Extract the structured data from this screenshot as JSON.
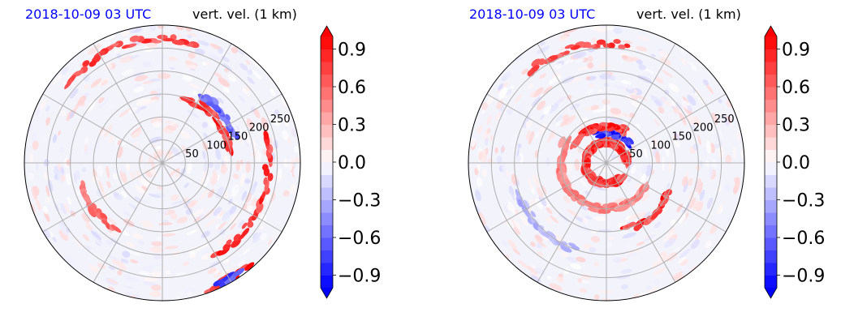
{
  "chart_data": [
    {
      "type": "heatmap",
      "projection": "polar",
      "title_left": "2018-10-09 03 UTC",
      "title_right": "vert. vel. (1 km)",
      "radial_ticks": [
        "50",
        "100",
        "150",
        "200",
        "250"
      ],
      "radial_values": [
        50,
        100,
        150,
        200,
        250
      ],
      "rlim": [
        0,
        300
      ],
      "grid": true,
      "colorbar": {
        "vmin": -1.0,
        "vmax": 1.0,
        "levels": 20,
        "extend": "both",
        "cmap": "bwr",
        "tick_values": [
          0.9,
          0.6,
          0.3,
          0.0,
          -0.3,
          -0.6,
          -0.9
        ],
        "tick_labels": [
          "0.9",
          "0.6",
          "0.3",
          "0.0",
          "−0.3",
          "−0.6",
          "−0.9"
        ]
      },
      "features": [
        {
          "kind": "band",
          "sign": "pos",
          "r": 150,
          "theta_start": 10,
          "theta_end": 70,
          "strength": 1.0
        },
        {
          "kind": "band",
          "sign": "neg",
          "r": 170,
          "theta_start": 20,
          "theta_end": 60,
          "strength": 0.8
        },
        {
          "kind": "band",
          "sign": "pos",
          "r": 230,
          "theta_start": -60,
          "theta_end": 15,
          "strength": 1.0
        },
        {
          "kind": "band",
          "sign": "pos",
          "r": 270,
          "theta_start": 75,
          "theta_end": 140,
          "strength": 0.9
        },
        {
          "kind": "band",
          "sign": "pos",
          "r": 180,
          "theta_start": 195,
          "theta_end": 235,
          "strength": 0.7
        },
        {
          "kind": "band",
          "sign": "pos",
          "r": 290,
          "theta_start": -70,
          "theta_end": -50,
          "strength": 1.0
        },
        {
          "kind": "band",
          "sign": "neg",
          "r": 290,
          "theta_start": -65,
          "theta_end": -55,
          "strength": 0.9
        }
      ]
    },
    {
      "type": "heatmap",
      "projection": "polar",
      "title_left": "2018-10-09 03 UTC",
      "title_right": "vert. vel. (1 km)",
      "radial_ticks": [
        "50",
        "100",
        "150",
        "200",
        "250"
      ],
      "radial_values": [
        50,
        100,
        150,
        200,
        250
      ],
      "rlim": [
        0,
        300
      ],
      "grid": true,
      "colorbar": {
        "vmin": -1.0,
        "vmax": 1.0,
        "levels": 20,
        "extend": "both",
        "cmap": "bwr",
        "tick_values": [
          0.9,
          0.6,
          0.3,
          0.0,
          -0.3,
          -0.6,
          -0.9
        ],
        "tick_labels": [
          "0.9",
          "0.6",
          "0.3",
          "0.0",
          "−0.3",
          "−0.6",
          "−0.9"
        ]
      },
      "features": [
        {
          "kind": "band",
          "sign": "pos",
          "r": 45,
          "theta_start": 0,
          "theta_end": 320,
          "strength": 1.0
        },
        {
          "kind": "band",
          "sign": "neg",
          "r": 65,
          "theta_start": 40,
          "theta_end": 110,
          "strength": 1.0
        },
        {
          "kind": "band",
          "sign": "pos",
          "r": 80,
          "theta_start": 60,
          "theta_end": 150,
          "strength": 1.0
        },
        {
          "kind": "band",
          "sign": "pos",
          "r": 100,
          "theta_start": 150,
          "theta_end": 330,
          "strength": 0.6
        },
        {
          "kind": "band",
          "sign": "pos",
          "r": 150,
          "theta_start": -75,
          "theta_end": -25,
          "strength": 1.0
        },
        {
          "kind": "band",
          "sign": "pos",
          "r": 260,
          "theta_start": 80,
          "theta_end": 130,
          "strength": 0.9
        },
        {
          "kind": "band",
          "sign": "neg",
          "r": 200,
          "theta_start": 200,
          "theta_end": 250,
          "strength": 0.4
        }
      ]
    }
  ]
}
